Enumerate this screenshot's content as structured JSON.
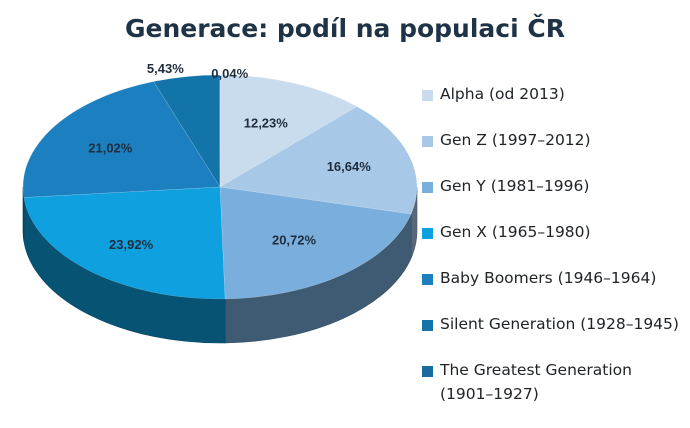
{
  "chart_data": {
    "type": "pie",
    "title": "Generace: podíl na populaci ČR",
    "categories": [
      "Alpha (od 2013)",
      "Gen Z (1997–2012)",
      "Gen Y (1981–1996)",
      "Gen X (1965–1980)",
      "Baby Boomers (1946–1964)",
      "Silent Generation (1928–1945)",
      "The Greatest Generation (1901–1927)"
    ],
    "values": [
      12.23,
      16.64,
      20.72,
      23.92,
      21.02,
      5.43,
      0.04
    ],
    "data_labels": [
      "12,23%",
      "16,64%",
      "20,72%",
      "23,92%",
      "21,02%",
      "5,43%",
      "0,04%"
    ],
    "colors": [
      "#c9dcee",
      "#a8c8e7",
      "#7aafdd",
      "#0ea0df",
      "#1b7fc0",
      "#1374a9",
      "#186b9a"
    ],
    "legend_position": "right"
  }
}
